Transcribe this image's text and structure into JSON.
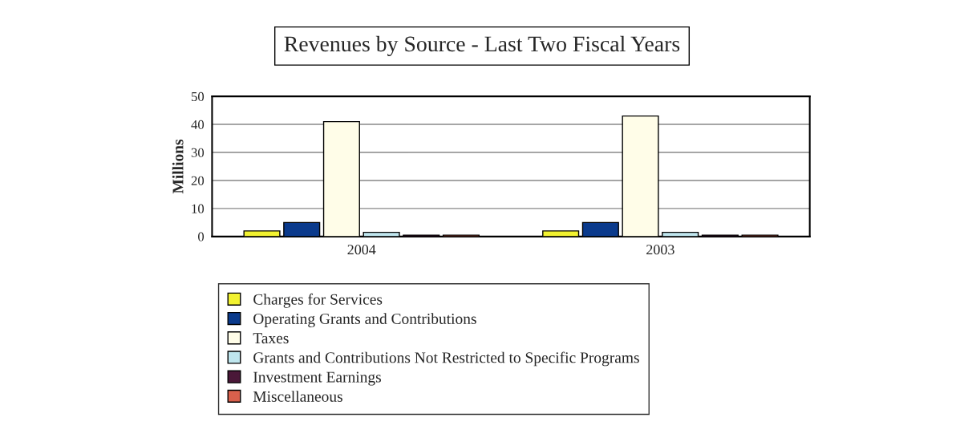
{
  "chart_data": {
    "type": "bar",
    "title": "Revenues by Source - Last Two Fiscal Years",
    "ylabel": "Millions",
    "categories": [
      "2004",
      "2003"
    ],
    "series": [
      {
        "name": "Charges for Services",
        "color": "#f2f230",
        "values": [
          2,
          2
        ]
      },
      {
        "name": "Operating Grants and Contributions",
        "color": "#0a3a8c",
        "values": [
          5,
          5
        ]
      },
      {
        "name": "Taxes",
        "color": "#fffde8",
        "values": [
          41,
          43
        ]
      },
      {
        "name": "Grants and Contributions Not Restricted to Specific Programs",
        "color": "#bfe6ee",
        "values": [
          1.5,
          1.5
        ]
      },
      {
        "name": "Investment Earnings",
        "color": "#4a1838",
        "values": [
          0.5,
          0.5
        ]
      },
      {
        "name": "Miscellaneous",
        "color": "#d9604c",
        "values": [
          0.5,
          0.5
        ]
      }
    ],
    "ylim": [
      0,
      50
    ],
    "yticks": [
      0,
      10,
      20,
      30,
      40,
      50
    ],
    "grid": "y",
    "legend": "bottom"
  }
}
